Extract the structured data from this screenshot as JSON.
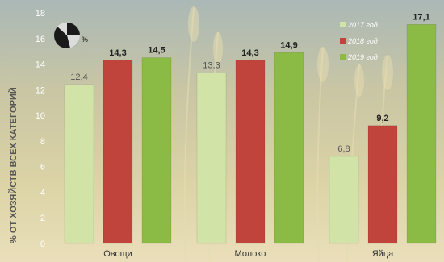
{
  "chart_data": {
    "type": "bar",
    "title": "",
    "xlabel": "",
    "ylabel": "% ОТ ХОЗЯЙСТВ ВСЕХ КАТЕГОРИЙ",
    "ylim": [
      0,
      18
    ],
    "yticks": [
      0,
      2,
      4,
      6,
      8,
      10,
      12,
      14,
      16,
      18
    ],
    "categories": [
      "Овощи",
      "Молоко",
      "Яйца"
    ],
    "series": [
      {
        "name": "2017 год",
        "color": "#d2e3a8",
        "values": [
          12.4,
          13.3,
          6.8
        ],
        "labels": [
          "12,4",
          "13,3",
          "6,8"
        ]
      },
      {
        "name": "2018 год",
        "color": "#c0443c",
        "values": [
          14.3,
          14.3,
          9.2
        ],
        "labels": [
          "14,3",
          "14,3",
          "9,2"
        ]
      },
      {
        "name": "2019 год",
        "color": "#8bbb45",
        "values": [
          14.5,
          14.9,
          17.1
        ],
        "labels": [
          "14,5",
          "14,9",
          "17,1"
        ]
      }
    ],
    "legend_position": "top-right",
    "grid": false
  },
  "logo": {
    "text": "%",
    "icon": "pie-chart-icon"
  }
}
